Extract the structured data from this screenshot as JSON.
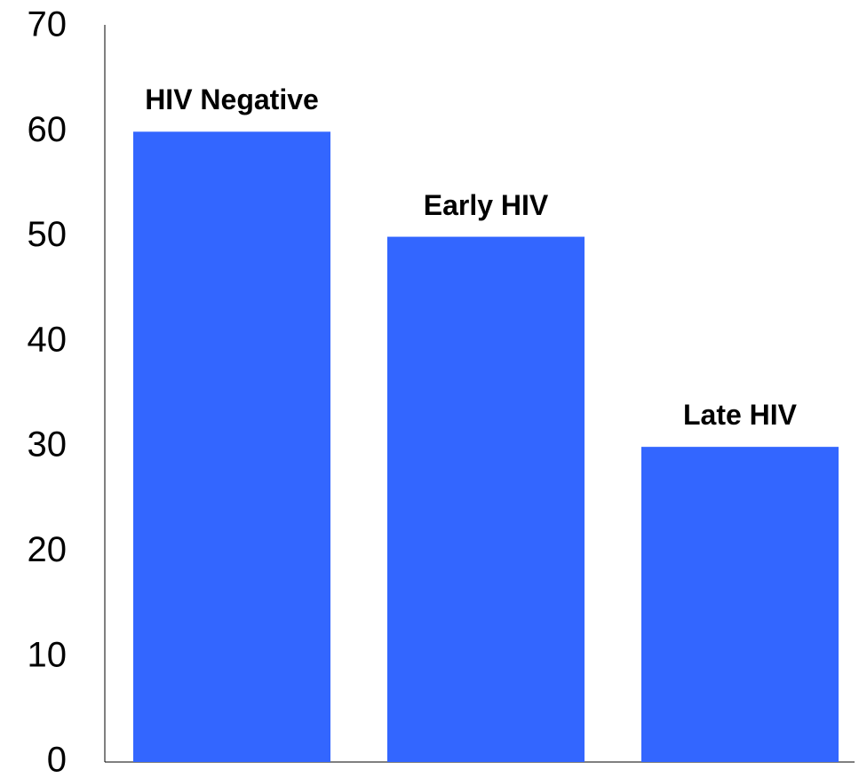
{
  "chart_data": {
    "type": "bar",
    "categories": [
      "HIV Negative",
      "Early HIV",
      "Late HIV"
    ],
    "values": [
      60,
      50,
      30
    ],
    "color": "#3366ff",
    "ylim": [
      0,
      70
    ],
    "yticks": [
      0,
      10,
      20,
      30,
      40,
      50,
      60,
      70
    ],
    "grid": false
  }
}
